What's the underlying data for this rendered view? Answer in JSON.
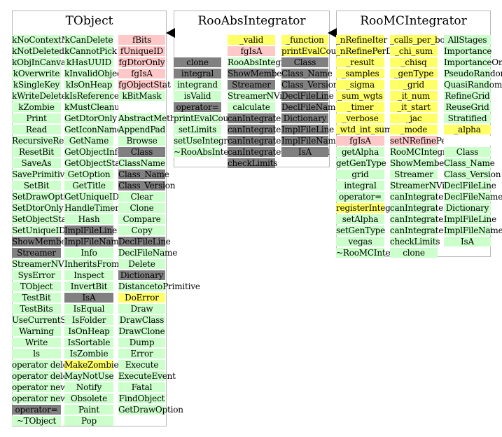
{
  "panels": [
    {
      "title": "TObject",
      "columns": [
        [
          [
            "kNoContextMenu",
            "g"
          ],
          [
            "kNotDeleted",
            "g"
          ],
          [
            "kObjInCanvas",
            "g"
          ],
          [
            "kOverwrite",
            "g"
          ],
          [
            "kSingleKey",
            "g"
          ],
          [
            "kWriteDelete",
            "g"
          ],
          [
            "kZombie",
            "g"
          ],
          [
            "Print",
            "g"
          ],
          [
            "Read",
            "g"
          ],
          [
            "RecursiveRemove",
            "g"
          ],
          [
            "ResetBit",
            "g"
          ],
          [
            "SaveAs",
            "g"
          ],
          [
            "SavePrimitive",
            "g"
          ],
          [
            "SetBit",
            "g"
          ],
          [
            "SetDrawOption",
            "g"
          ],
          [
            "SetDtorOnly",
            "g"
          ],
          [
            "SetObjectStat",
            "g"
          ],
          [
            "SetUniqueID",
            "g"
          ],
          [
            "ShowMembers",
            "x"
          ],
          [
            "Streamer",
            "x"
          ],
          [
            "StreamerNVirtual",
            "g"
          ],
          [
            "SysError",
            "g"
          ],
          [
            "TObject",
            "g"
          ],
          [
            "TestBit",
            "g"
          ],
          [
            "TestBits",
            "g"
          ],
          [
            "UseCurrentStyle",
            "g"
          ],
          [
            "Warning",
            "g"
          ],
          [
            "Write",
            "g"
          ],
          [
            "ls",
            "g"
          ],
          [
            "operator delete",
            "g"
          ],
          [
            "operator delete[]",
            "g"
          ],
          [
            "operator new",
            "g"
          ],
          [
            "operator new[]",
            "g"
          ],
          [
            "operator=",
            "x"
          ],
          [
            "~TObject",
            "g"
          ]
        ],
        [
          [
            "kCanDelete",
            "g"
          ],
          [
            "kCannotPick",
            "g"
          ],
          [
            "kHasUUID",
            "g"
          ],
          [
            "kInvalidObject",
            "g"
          ],
          [
            "kIsOnHeap",
            "g"
          ],
          [
            "kIsReferenced",
            "g"
          ],
          [
            "kMustCleanup",
            "g"
          ],
          [
            "GetDtorOnly",
            "g"
          ],
          [
            "GetIconName",
            "g"
          ],
          [
            "GetName",
            "g"
          ],
          [
            "GetObjectInfo",
            "g"
          ],
          [
            "GetObjectStat",
            "g"
          ],
          [
            "GetOption",
            "g"
          ],
          [
            "GetTitle",
            "g"
          ],
          [
            "GetUniqueID",
            "g"
          ],
          [
            "HandleTimer",
            "g"
          ],
          [
            "Hash",
            "g"
          ],
          [
            "ImplFileLine",
            "x"
          ],
          [
            "ImplFileName",
            "x"
          ],
          [
            "Info",
            "g"
          ],
          [
            "InheritsFrom",
            "g"
          ],
          [
            "Inspect",
            "g"
          ],
          [
            "InvertBit",
            "g"
          ],
          [
            "IsA",
            "x"
          ],
          [
            "IsEqual",
            "g"
          ],
          [
            "IsFolder",
            "g"
          ],
          [
            "IsOnHeap",
            "g"
          ],
          [
            "IsSortable",
            "g"
          ],
          [
            "IsZombie",
            "g"
          ],
          [
            "MakeZombie",
            "y"
          ],
          [
            "MayNotUse",
            "g"
          ],
          [
            "Notify",
            "g"
          ],
          [
            "Obsolete",
            "g"
          ],
          [
            "Paint",
            "g"
          ],
          [
            "Pop",
            "g"
          ]
        ],
        [
          [
            "fBits",
            "p"
          ],
          [
            "fUniqueID",
            "p"
          ],
          [
            "fgDtorOnly",
            "p"
          ],
          [
            "fgIsA",
            "p"
          ],
          [
            "fgObjectStat",
            "p"
          ],
          [
            "kBitMask",
            "g"
          ],
          [
            "",
            "w"
          ],
          [
            "AbstractMethod",
            "g"
          ],
          [
            "AppendPad",
            "g"
          ],
          [
            "Browse",
            "g"
          ],
          [
            "Class",
            "x"
          ],
          [
            "ClassName",
            "g"
          ],
          [
            "Class_Name",
            "x"
          ],
          [
            "Class_Version",
            "x"
          ],
          [
            "Clear",
            "g"
          ],
          [
            "Clone",
            "g"
          ],
          [
            "Compare",
            "g"
          ],
          [
            "Copy",
            "g"
          ],
          [
            "DeclFileLine",
            "x"
          ],
          [
            "DeclFileName",
            "g"
          ],
          [
            "Delete",
            "g"
          ],
          [
            "Dictionary",
            "x"
          ],
          [
            "DistancetoPrimitive",
            "g"
          ],
          [
            "DoError",
            "y"
          ],
          [
            "Draw",
            "g"
          ],
          [
            "DrawClass",
            "g"
          ],
          [
            "DrawClone",
            "g"
          ],
          [
            "Dump",
            "g"
          ],
          [
            "Error",
            "g"
          ],
          [
            "Execute",
            "g"
          ],
          [
            "ExecuteEvent",
            "g"
          ],
          [
            "Fatal",
            "g"
          ],
          [
            "FindObject",
            "g"
          ],
          [
            "GetDrawOption",
            "g"
          ]
        ]
      ]
    },
    {
      "title": "RooAbsIntegrator",
      "columns": [
        [
          [
            "",
            "e"
          ],
          [
            "",
            "e"
          ],
          [
            "clone",
            "x"
          ],
          [
            "integral",
            "x"
          ],
          [
            "integrand",
            "g"
          ],
          [
            "isValid",
            "g"
          ],
          [
            "operator=",
            "x"
          ],
          [
            "printEvalCounter",
            "g"
          ],
          [
            "setLimits",
            "g"
          ],
          [
            "setUseIntegrandLimits",
            "g"
          ],
          [
            "~RooAbsIntegrator",
            "g"
          ]
        ],
        [
          [
            "_valid",
            "y"
          ],
          [
            "fgIsA",
            "p"
          ],
          [
            "RooAbsIntegrator",
            "g"
          ],
          [
            "ShowMembers",
            "x"
          ],
          [
            "Streamer",
            "x"
          ],
          [
            "StreamerNVirtual",
            "g"
          ],
          [
            "calculate",
            "g"
          ],
          [
            "canIntegrate1D",
            "x"
          ],
          [
            "canIntegrate2D",
            "x"
          ],
          [
            "canIntegrateND",
            "x"
          ],
          [
            "canIntegrateOpenEnded",
            "x"
          ],
          [
            "checkLimits",
            "x"
          ]
        ],
        [
          [
            "_function",
            "y"
          ],
          [
            "printEvalCounter",
            "y"
          ],
          [
            "Class",
            "x"
          ],
          [
            "Class_Name",
            "x"
          ],
          [
            "Class_Version",
            "x"
          ],
          [
            "DeclFileLine",
            "x"
          ],
          [
            "DeclFileName",
            "x"
          ],
          [
            "Dictionary",
            "x"
          ],
          [
            "ImplFileLine",
            "x"
          ],
          [
            "ImplFileName",
            "x"
          ],
          [
            "IsA",
            "x"
          ]
        ]
      ]
    },
    {
      "title": "RooMCIntegrator",
      "columns": [
        [
          [
            "_nRefineIter",
            "y"
          ],
          [
            "_nRefinePerDim",
            "y"
          ],
          [
            "_result",
            "y"
          ],
          [
            "_samples",
            "y"
          ],
          [
            "_sigma",
            "y"
          ],
          [
            "_sum_wgts",
            "y"
          ],
          [
            "_timer",
            "y"
          ],
          [
            "_verbose",
            "y"
          ],
          [
            "_wtd_int_sum",
            "y"
          ],
          [
            "fgIsA",
            "p"
          ],
          [
            "getAlpha",
            "g"
          ],
          [
            "getGenType",
            "g"
          ],
          [
            "grid",
            "g"
          ],
          [
            "integral",
            "g"
          ],
          [
            "operator=",
            "g"
          ],
          [
            "registerIntegrator",
            "y"
          ],
          [
            "setAlpha",
            "g"
          ],
          [
            "setGenType",
            "g"
          ],
          [
            "vegas",
            "g"
          ],
          [
            "~RooMCIntegrator",
            "g"
          ]
        ],
        [
          [
            "_calls_per_box",
            "y"
          ],
          [
            "_chi_sum",
            "y"
          ],
          [
            "_chisq",
            "y"
          ],
          [
            "_genType",
            "y"
          ],
          [
            "_grid",
            "y"
          ],
          [
            "_it_num",
            "y"
          ],
          [
            "_it_start",
            "y"
          ],
          [
            "_jac",
            "y"
          ],
          [
            "_mode",
            "y"
          ],
          [
            "setNRefinePerDim",
            "p"
          ],
          [
            "RooMCIntegrator",
            "g"
          ],
          [
            "ShowMembers",
            "g"
          ],
          [
            "Streamer",
            "g"
          ],
          [
            "StreamerNVirtual",
            "g"
          ],
          [
            "canIntegrate1D",
            "g"
          ],
          [
            "canIntegrate2D",
            "g"
          ],
          [
            "canIntegrateND",
            "g"
          ],
          [
            "canIntegrateOpenEnded",
            "g"
          ],
          [
            "checkLimits",
            "g"
          ],
          [
            "clone",
            "g"
          ]
        ],
        [
          [
            "AllStages",
            "g"
          ],
          [
            "Importance",
            "g"
          ],
          [
            "ImportanceOnly",
            "g"
          ],
          [
            "PseudoRandom",
            "g"
          ],
          [
            "QuasiRandom",
            "g"
          ],
          [
            "RefineGrid",
            "g"
          ],
          [
            "ReuseGrid",
            "g"
          ],
          [
            "Stratified",
            "g"
          ],
          [
            "_alpha",
            "y"
          ],
          [
            "",
            "w"
          ],
          [
            "Class",
            "g"
          ],
          [
            "Class_Name",
            "g"
          ],
          [
            "Class_Version",
            "g"
          ],
          [
            "DeclFileLine",
            "g"
          ],
          [
            "DeclFileName",
            "g"
          ],
          [
            "Dictionary",
            "g"
          ],
          [
            "ImplFileLine",
            "g"
          ],
          [
            "ImplFileName",
            "g"
          ],
          [
            "IsA",
            "g"
          ]
        ]
      ]
    }
  ],
  "colors": {
    "public": "#ccffcc",
    "private": "#ffc8c8",
    "protected": "#ffff66",
    "inherited": "#808080",
    "border": "#b8b8b8",
    "arrow": "#000000"
  }
}
